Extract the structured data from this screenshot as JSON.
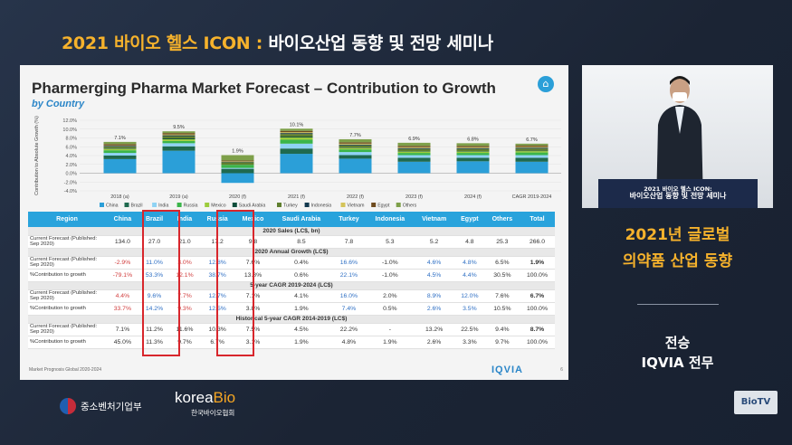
{
  "banner": {
    "title_part1": "2021 바이오 헬스 ICON : ",
    "title_part2": "바이오산업 동향 및 전망 세미나"
  },
  "slide": {
    "title": "Pharmerging Pharma Market Forecast – Contribution to Growth",
    "subtitle": "by Country",
    "home_icon": "home-icon",
    "footnote": "Market Prognosis Global 2020-2024",
    "brand": "IQVIA",
    "page_num": "6"
  },
  "chart_data": {
    "type": "bar",
    "stacked": true,
    "ylabel": "Contribution to Absolute Growth (%)",
    "ylim": [
      -4,
      12
    ],
    "yticks": [
      "12.0%",
      "10.0%",
      "8.0%",
      "6.0%",
      "4.0%",
      "2.0%",
      "0.0%",
      "-2.0%",
      "-4.0%"
    ],
    "categories": [
      "2018 (a)",
      "2019 (a)",
      "2020 (f)",
      "2021 (f)",
      "2022 (f)",
      "2023 (f)",
      "2024 (f)",
      "CAGR 2019-2024"
    ],
    "totals": [
      "7.1%",
      "9.5%",
      "1.9%",
      "10.1%",
      "7.7%",
      "6.9%",
      "6.8%",
      "6.7%"
    ],
    "total_values": [
      7.1,
      9.5,
      1.9,
      10.1,
      7.7,
      6.9,
      6.8,
      6.7
    ],
    "series": [
      {
        "name": "China",
        "color": "#2b9fd8",
        "values": [
          3.2,
          5.1,
          -2.2,
          4.4,
          3.3,
          2.6,
          2.7,
          2.6
        ]
      },
      {
        "name": "Brazil",
        "color": "#1f6a4f",
        "values": [
          0.8,
          1.0,
          1.0,
          1.2,
          0.8,
          0.9,
          0.8,
          0.9
        ]
      },
      {
        "name": "India",
        "color": "#8fd3f4",
        "values": [
          0.6,
          0.7,
          0.2,
          1.1,
          0.7,
          0.6,
          0.6,
          0.6
        ]
      },
      {
        "name": "Russia",
        "color": "#3bb54a",
        "values": [
          0.6,
          0.5,
          0.7,
          0.9,
          0.6,
          0.5,
          0.5,
          0.6
        ]
      },
      {
        "name": "Mexico",
        "color": "#9ccc3c",
        "values": [
          0.3,
          0.4,
          0.0,
          0.5,
          0.3,
          0.3,
          0.3,
          0.3
        ]
      },
      {
        "name": "Saudi Arabia",
        "color": "#0d4d3a",
        "values": [
          0.1,
          0.2,
          0.0,
          0.2,
          0.1,
          0.1,
          0.1,
          0.1
        ]
      },
      {
        "name": "Turkey",
        "color": "#5f7f2f",
        "values": [
          0.4,
          0.5,
          0.6,
          0.6,
          0.5,
          0.5,
          0.5,
          0.5
        ]
      },
      {
        "name": "Indonesia",
        "color": "#13394f",
        "values": [
          0.2,
          0.2,
          0.1,
          0.2,
          0.2,
          0.2,
          0.2,
          0.2
        ]
      },
      {
        "name": "Vietnam",
        "color": "#d4c45a",
        "values": [
          0.1,
          0.2,
          0.1,
          0.2,
          0.2,
          0.2,
          0.2,
          0.2
        ]
      },
      {
        "name": "Egypt",
        "color": "#6e4a1e",
        "values": [
          0.3,
          0.3,
          0.2,
          0.3,
          0.3,
          0.3,
          0.3,
          0.3
        ]
      },
      {
        "name": "Others",
        "color": "#7ea04a",
        "values": [
          0.5,
          0.4,
          1.2,
          0.5,
          0.7,
          0.7,
          0.6,
          0.4
        ]
      }
    ]
  },
  "table": {
    "headers": [
      "Region",
      "China",
      "Brazil",
      "India",
      "Russia",
      "Mexico",
      "Saudi Arabia",
      "Turkey",
      "Indonesia",
      "Vietnam",
      "Egypt",
      "Others",
      "Total"
    ],
    "sections": [
      {
        "title": "2020 Sales (LC$, bn)",
        "rows": [
          {
            "label": "Current Forecast (Published: Sep 2020)",
            "cells": [
              "134.0",
              "27.0",
              "21.0",
              "17.2",
              "9.8",
              "8.5",
              "7.8",
              "5.3",
              "5.2",
              "4.8",
              "25.3",
              "266.0"
            ]
          }
        ]
      },
      {
        "title": "2020 Annual Growth (LC$)",
        "rows": [
          {
            "label": "Current Forecast (Published: Sep 2020)",
            "cells": [
              "-2.9%",
              "11.0%",
              "3.0%",
              "12.8%",
              "7.6%",
              "0.4%",
              "16.6%",
              "-1.0%",
              "4.6%",
              "4.8%",
              "6.5%",
              "1.9%"
            ]
          },
          {
            "label": "%Contribution to growth",
            "cells": [
              "-79.1%",
              "53.3%",
              "12.1%",
              "38.7%",
              "13.8%",
              "0.6%",
              "22.1%",
              "-1.0%",
              "4.5%",
              "4.4%",
              "30.5%",
              "100.0%"
            ]
          }
        ]
      },
      {
        "title": "5-year CAGR 2019-2024 (LC$)",
        "rows": [
          {
            "label": "Current Forecast (Published: Sep 2020)",
            "cells": [
              "4.4%",
              "9.6%",
              "7.7%",
              "12.7%",
              "7.1%",
              "4.1%",
              "16.0%",
              "2.0%",
              "8.9%",
              "12.0%",
              "7.6%",
              "6.7%"
            ]
          },
          {
            "label": "%Contribution to growth",
            "cells": [
              "33.7%",
              "14.2%",
              "9.3%",
              "12.5%",
              "3.8%",
              "1.9%",
              "7.4%",
              "0.5%",
              "2.6%",
              "3.5%",
              "10.5%",
              "100.0%"
            ]
          }
        ]
      },
      {
        "title": "Historical 5-year CAGR 2014-2019 (LC$)",
        "rows": [
          {
            "label": "Current Forecast (Published: Sep 2020)",
            "cells": [
              "7.1%",
              "11.2%",
              "11.6%",
              "10.3%",
              "7.5%",
              "4.5%",
              "22.2%",
              "-",
              "13.2%",
              "22.5%",
              "9.4%",
              "8.7%"
            ]
          },
          {
            "label": "%Contribution to growth",
            "cells": [
              "45.0%",
              "11.3%",
              "9.7%",
              "6.7%",
              "3.1%",
              "1.9%",
              "4.8%",
              "1.9%",
              "2.6%",
              "3.3%",
              "9.7%",
              "100.0%"
            ]
          }
        ]
      }
    ]
  },
  "camera": {
    "podium_line1": "2021 바이오 헬스 ICON:",
    "podium_line2": "바이오산업 동향 및 전망 세미나"
  },
  "right_panel": {
    "title_line1": "2021년 글로벌",
    "title_line2": "의약품 산업 동향",
    "name_line1": "전승",
    "name_line2": "IQVIA 전무"
  },
  "footer": {
    "ministry": "중소벤처기업부",
    "korea_bio_a": "korea",
    "korea_bio_b": "Bio",
    "korea_bio_kr": "한국바이오협회",
    "biotv": "BioTV"
  }
}
